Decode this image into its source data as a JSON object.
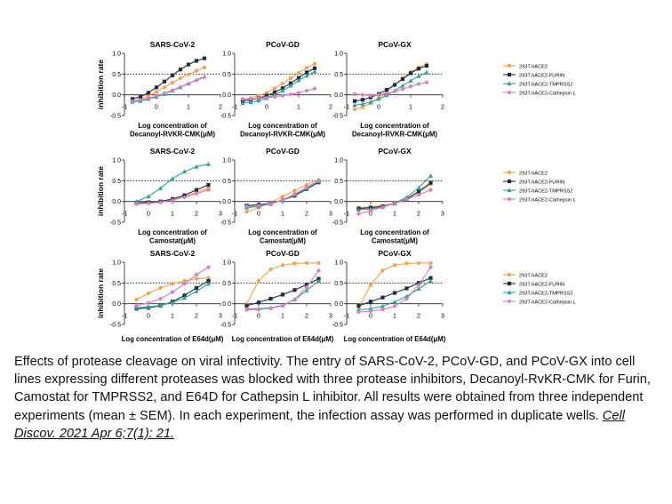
{
  "figure": {
    "ylabel": "inhibition rate",
    "legend": [
      "293T-hACE2",
      "293T-hACE2-FURIN",
      "293T-hACE2-TMPRSS2",
      "293T-hACE2-Cathepsin L"
    ],
    "series_colors": [
      "#f5a04a",
      "#1f2a44",
      "#2aa58e",
      "#d77fc0"
    ]
  },
  "caption": {
    "text": "Effects of protease cleavage on viral infectivity. The entry of SARS-CoV-2, PCoV-GD, and PCoV-GX into cell lines expressing different proteases was blocked with three protease inhibitors, Decanoyl-RvKR-CMK for Furin, Camostat for TMPRSS2, and E64D for Cathepsin L inhibitor. All results were obtained from three independent experiments (mean ± SEM). In each experiment, the infection assay was performed in duplicate wells.",
    "citation": "Cell Discov. 2021 Apr 6;7(1): 21."
  },
  "chart_data": [
    {
      "type": "line",
      "title": "SARS-CoV-2",
      "xlabel": "Log concentration of Decanoyl-RVKR-CMK(μM)",
      "ylabel": "inhibition rate",
      "xlim": [
        -1,
        2
      ],
      "ylim": [
        -0.5,
        1.0
      ],
      "xticks": [
        -1,
        0,
        1,
        2
      ],
      "yticks": [
        -0.5,
        0.0,
        0.5,
        1.0
      ],
      "threshold": 0.5,
      "x": [
        -0.75,
        -0.5,
        -0.25,
        0,
        0.25,
        0.5,
        0.75,
        1,
        1.25,
        1.5
      ],
      "series": [
        {
          "name": "293T-hACE2",
          "values": [
            -0.17,
            -0.1,
            -0.02,
            0.07,
            0.18,
            0.29,
            0.4,
            0.49,
            0.58,
            0.66
          ]
        },
        {
          "name": "293T-hACE2-FURIN",
          "values": [
            -0.1,
            -0.05,
            0.05,
            0.18,
            0.32,
            0.47,
            0.61,
            0.73,
            0.82,
            0.88
          ]
        },
        {
          "name": "293T-hACE2-TMPRSS2",
          "values": [
            -0.17,
            -0.15,
            -0.1,
            -0.05,
            0.02,
            0.1,
            0.18,
            0.27,
            0.36,
            0.44
          ]
        },
        {
          "name": "293T-hACE2-Cathepsin L",
          "values": [
            -0.15,
            -0.12,
            -0.08,
            -0.03,
            0.04,
            0.11,
            0.19,
            0.27,
            0.35,
            0.42
          ]
        }
      ]
    },
    {
      "type": "line",
      "title": "PCoV-GD",
      "xlabel": "Log concentration of Decanoyl-RVKR-CMK(μM)",
      "ylabel": "inhibition rate",
      "xlim": [
        -1,
        2
      ],
      "ylim": [
        -0.5,
        1.0
      ],
      "xticks": [
        -1,
        0,
        1,
        2
      ],
      "yticks": [
        -0.5,
        0.0,
        0.5,
        1.0
      ],
      "threshold": 0.5,
      "x": [
        -0.75,
        -0.5,
        -0.25,
        0,
        0.25,
        0.5,
        0.75,
        1,
        1.25,
        1.5
      ],
      "series": [
        {
          "name": "293T-hACE2",
          "values": [
            -0.12,
            -0.08,
            -0.02,
            0.05,
            0.15,
            0.27,
            0.4,
            0.53,
            0.65,
            0.75
          ]
        },
        {
          "name": "293T-hACE2-FURIN",
          "values": [
            -0.15,
            -0.12,
            -0.08,
            -0.02,
            0.06,
            0.16,
            0.28,
            0.41,
            0.54,
            0.64
          ]
        },
        {
          "name": "293T-hACE2-TMPRSS2",
          "values": [
            -0.2,
            -0.18,
            -0.14,
            -0.08,
            0.0,
            0.1,
            0.22,
            0.35,
            0.46,
            0.56
          ]
        },
        {
          "name": "293T-hACE2-Cathepsin L",
          "values": [
            -0.1,
            -0.1,
            -0.08,
            -0.07,
            -0.05,
            -0.02,
            0.01,
            0.05,
            0.1,
            0.15
          ]
        }
      ]
    },
    {
      "type": "line",
      "title": "PCoV-GX",
      "xlabel": "Log concentration of Decanoyl-RVKR-CMK(μM)",
      "ylabel": "inhibition rate",
      "xlim": [
        -1,
        2
      ],
      "ylim": [
        -0.5,
        1.0
      ],
      "xticks": [
        -1,
        0,
        1,
        2
      ],
      "yticks": [
        -0.5,
        0.0,
        0.5,
        1.0
      ],
      "threshold": 0.5,
      "x": [
        -0.75,
        -0.5,
        -0.25,
        0,
        0.25,
        0.5,
        0.75,
        1,
        1.25,
        1.5
      ],
      "series": [
        {
          "name": "293T-hACE2",
          "values": [
            -0.35,
            -0.3,
            -0.2,
            -0.08,
            0.08,
            0.24,
            0.4,
            0.55,
            0.66,
            0.74
          ]
        },
        {
          "name": "293T-hACE2-FURIN",
          "values": [
            -0.15,
            -0.12,
            -0.06,
            0.02,
            0.12,
            0.24,
            0.38,
            0.52,
            0.63,
            0.7
          ]
        },
        {
          "name": "293T-hACE2-TMPRSS2",
          "values": [
            -0.25,
            -0.22,
            -0.17,
            -0.1,
            -0.01,
            0.1,
            0.22,
            0.34,
            0.45,
            0.54
          ]
        },
        {
          "name": "293T-hACE2-Cathepsin L",
          "values": [
            0.02,
            0.0,
            -0.02,
            0.0,
            0.03,
            0.08,
            0.14,
            0.2,
            0.26,
            0.3
          ]
        }
      ]
    },
    {
      "type": "line",
      "title": "SARS-CoV-2",
      "xlabel": "Log concentration of Camostat(μM)",
      "ylabel": "inhibition rate",
      "xlim": [
        -1,
        3
      ],
      "ylim": [
        -0.5,
        1.0
      ],
      "xticks": [
        -1,
        0,
        1,
        2,
        3
      ],
      "yticks": [
        -0.5,
        0.0,
        0.5,
        1.0
      ],
      "threshold": 0.5,
      "x": [
        -0.5,
        0,
        0.5,
        1,
        1.5,
        2,
        2.5
      ],
      "series": [
        {
          "name": "293T-hACE2",
          "values": [
            -0.05,
            -0.03,
            -0.01,
            0.04,
            0.12,
            0.22,
            0.32
          ]
        },
        {
          "name": "293T-hACE2-FURIN",
          "values": [
            -0.04,
            -0.02,
            0.0,
            0.06,
            0.15,
            0.28,
            0.4
          ]
        },
        {
          "name": "293T-hACE2-TMPRSS2",
          "values": [
            0.0,
            0.12,
            0.32,
            0.55,
            0.72,
            0.84,
            0.9
          ]
        },
        {
          "name": "293T-hACE2-Cathepsin L",
          "values": [
            -0.06,
            -0.04,
            -0.02,
            0.03,
            0.1,
            0.19,
            0.28
          ]
        }
      ]
    },
    {
      "type": "line",
      "title": "PCoV-GD",
      "xlabel": "Log concentration of Camostat(μM)",
      "ylabel": "inhibition rate",
      "xlim": [
        -1,
        3
      ],
      "ylim": [
        -0.5,
        1.0
      ],
      "xticks": [
        -1,
        0,
        1,
        2,
        3
      ],
      "yticks": [
        -0.5,
        0.0,
        0.5,
        1.0
      ],
      "threshold": 0.5,
      "x": [
        -0.5,
        0,
        0.5,
        1,
        1.5,
        2,
        2.5
      ],
      "series": [
        {
          "name": "293T-hACE2",
          "values": [
            -0.25,
            -0.15,
            -0.02,
            0.12,
            0.26,
            0.4,
            0.52
          ]
        },
        {
          "name": "293T-hACE2-FURIN",
          "values": [
            -0.1,
            -0.08,
            -0.04,
            0.03,
            0.14,
            0.3,
            0.46
          ]
        },
        {
          "name": "293T-hACE2-TMPRSS2",
          "values": [
            -0.15,
            -0.12,
            -0.06,
            0.03,
            0.16,
            0.32,
            0.48
          ]
        },
        {
          "name": "293T-hACE2-Cathepsin L",
          "values": [
            -0.12,
            -0.1,
            -0.05,
            0.04,
            0.18,
            0.34,
            0.5
          ]
        }
      ]
    },
    {
      "type": "line",
      "title": "PCoV-GX",
      "xlabel": "Log concentration of Camostat(μM)",
      "ylabel": "inhibition rate",
      "xlim": [
        -1,
        3
      ],
      "ylim": [
        -0.5,
        1.0
      ],
      "xticks": [
        -1,
        0,
        1,
        2,
        3
      ],
      "yticks": [
        -0.5,
        0.0,
        0.5,
        1.0
      ],
      "threshold": 0.5,
      "x": [
        -0.5,
        0,
        0.5,
        1,
        1.5,
        2,
        2.5
      ],
      "series": [
        {
          "name": "293T-hACE2",
          "values": [
            -0.15,
            -0.13,
            -0.1,
            -0.04,
            0.06,
            0.22,
            0.42
          ]
        },
        {
          "name": "293T-hACE2-FURIN",
          "values": [
            -0.17,
            -0.15,
            -0.12,
            -0.05,
            0.06,
            0.24,
            0.45
          ]
        },
        {
          "name": "293T-hACE2-TMPRSS2",
          "values": [
            -0.2,
            -0.18,
            -0.13,
            -0.04,
            0.1,
            0.33,
            0.62
          ]
        },
        {
          "name": "293T-hACE2-Cathepsin L",
          "values": [
            -0.3,
            -0.22,
            -0.14,
            -0.05,
            0.05,
            0.16,
            0.28
          ]
        }
      ]
    },
    {
      "type": "line",
      "title": "SARS-CoV-2",
      "xlabel": "Log concentration of E64d(μM)",
      "ylabel": "inhibition rate",
      "xlim": [
        -1,
        3
      ],
      "ylim": [
        -0.5,
        1.0
      ],
      "xticks": [
        -1,
        0,
        1,
        2,
        3
      ],
      "yticks": [
        -0.5,
        0.0,
        0.5,
        1.0
      ],
      "threshold": 0.5,
      "x": [
        -0.5,
        0,
        0.5,
        1,
        1.5,
        2,
        2.5
      ],
      "series": [
        {
          "name": "293T-hACE2",
          "values": [
            0.1,
            0.25,
            0.38,
            0.48,
            0.55,
            0.6,
            0.62
          ]
        },
        {
          "name": "293T-hACE2-FURIN",
          "values": [
            -0.12,
            -0.1,
            -0.05,
            0.05,
            0.2,
            0.38,
            0.55
          ]
        },
        {
          "name": "293T-hACE2-TMPRSS2",
          "values": [
            -0.1,
            -0.08,
            -0.04,
            0.03,
            0.14,
            0.3,
            0.48
          ]
        },
        {
          "name": "293T-hACE2-Cathepsin L",
          "values": [
            -0.05,
            0.02,
            0.12,
            0.28,
            0.48,
            0.7,
            0.88
          ]
        }
      ]
    },
    {
      "type": "line",
      "title": "PCoV-GD",
      "xlabel": "Log concentration of E64d(μM)",
      "ylabel": "inhibition rate",
      "xlim": [
        -1,
        3
      ],
      "ylim": [
        -0.5,
        1.0
      ],
      "xticks": [
        -1,
        0,
        1,
        2,
        3
      ],
      "yticks": [
        -0.5,
        0.0,
        0.5,
        1.0
      ],
      "threshold": 0.5,
      "x": [
        -0.5,
        0,
        0.5,
        1,
        1.5,
        2,
        2.5
      ],
      "series": [
        {
          "name": "293T-hACE2",
          "values": [
            0.0,
            0.55,
            0.83,
            0.93,
            0.97,
            0.98,
            0.98
          ]
        },
        {
          "name": "293T-hACE2-FURIN",
          "values": [
            -0.05,
            0.03,
            0.12,
            0.22,
            0.33,
            0.46,
            0.6
          ]
        },
        {
          "name": "293T-hACE2-TMPRSS2",
          "values": [
            -0.12,
            -0.12,
            -0.1,
            -0.04,
            0.1,
            0.32,
            0.55
          ]
        },
        {
          "name": "293T-hACE2-Cathepsin L",
          "values": [
            -0.15,
            -0.14,
            -0.11,
            -0.05,
            0.1,
            0.4,
            0.8
          ]
        }
      ]
    },
    {
      "type": "line",
      "title": "PCoV-GX",
      "xlabel": "Log concentration of E64d(μM)",
      "ylabel": "inhibition rate",
      "xlim": [
        -1,
        3
      ],
      "ylim": [
        -0.5,
        1.0
      ],
      "xticks": [
        -1,
        0,
        1,
        2,
        3
      ],
      "yticks": [
        -0.5,
        0.0,
        0.5,
        1.0
      ],
      "threshold": 0.5,
      "x": [
        -0.5,
        0,
        0.5,
        1,
        1.5,
        2,
        2.5
      ],
      "series": [
        {
          "name": "293T-hACE2",
          "values": [
            -0.1,
            0.45,
            0.8,
            0.93,
            0.97,
            0.98,
            0.98
          ]
        },
        {
          "name": "293T-hACE2-FURIN",
          "values": [
            -0.05,
            0.05,
            0.15,
            0.26,
            0.37,
            0.5,
            0.62
          ]
        },
        {
          "name": "293T-hACE2-TMPRSS2",
          "values": [
            -0.15,
            -0.12,
            -0.06,
            0.04,
            0.18,
            0.36,
            0.55
          ]
        },
        {
          "name": "293T-hACE2-Cathepsin L",
          "values": [
            -0.2,
            -0.18,
            -0.14,
            -0.06,
            0.12,
            0.45,
            0.88
          ]
        }
      ]
    }
  ]
}
